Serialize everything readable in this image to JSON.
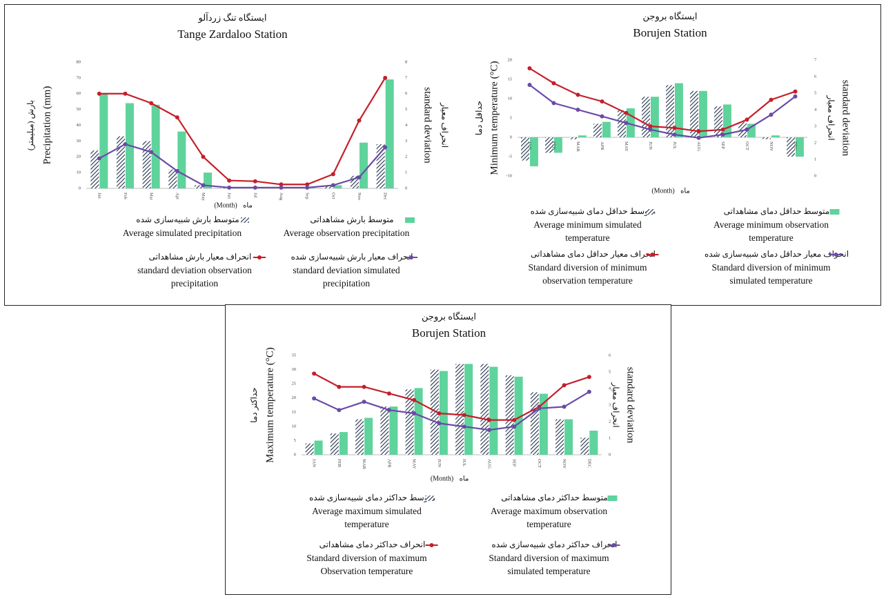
{
  "colors": {
    "observed_bar": "#5fd39c",
    "simulated_hatch": "#1f2f4a",
    "std_observed": "#c41f2a",
    "std_simulated": "#6a4aa6",
    "border": "#222222"
  },
  "chart_data": [
    {
      "type": "bar",
      "title_fa": "ایستگاه تنگ زردآلو",
      "title": "Tange Zardaloo Station",
      "ylabel": "Precipitation (mm)",
      "ylabel_fa": "بارش (میلیمتر)",
      "y2label": "standard deviation",
      "y2label_fa": "انحراف معیار",
      "xlabel": "(Month)",
      "xlabel_fa": "ماه",
      "categories": [
        "Jan",
        "Feb",
        "Mar",
        "Apr",
        "May",
        "Jun",
        "Jul",
        "Aug",
        "Sep",
        "Oct",
        "Nov",
        "Dec"
      ],
      "ylim": [
        0,
        80
      ],
      "yticks": [
        0,
        10,
        20,
        30,
        40,
        50,
        60,
        70,
        80
      ],
      "y2lim": [
        0,
        8
      ],
      "y2ticks": [
        0,
        1,
        2,
        3,
        4,
        5,
        6,
        7,
        8
      ],
      "series": [
        {
          "name": "Average simulated precipitation",
          "name_fa": "متوسط بارش شبیه‌سازی شده",
          "kind": "hatched-bar",
          "axis": "left",
          "values": [
            24,
            33,
            30,
            12,
            2,
            0.5,
            0.3,
            0.3,
            0.3,
            1.5,
            8,
            28
          ]
        },
        {
          "name": "Average observation precipitation",
          "name_fa": "متوسط بارش مشاهداتی",
          "kind": "bar",
          "axis": "left",
          "values": [
            60,
            54,
            53,
            36,
            10,
            0.5,
            0.3,
            0.3,
            0.3,
            2,
            29,
            69
          ]
        },
        {
          "name": "standard deviation observation precipitation",
          "name_fa": "انحراف معیار بارش مشاهداتی",
          "kind": "line",
          "axis": "right",
          "values": [
            6.0,
            6.0,
            5.4,
            4.5,
            2.0,
            0.5,
            0.45,
            0.25,
            0.25,
            0.9,
            4.3,
            7.0
          ]
        },
        {
          "name": "standard deviation simulated precipitation",
          "name_fa": "انحراف معیار بارش شبیه‌سازی شده",
          "kind": "line",
          "axis": "right",
          "values": [
            1.9,
            2.8,
            2.3,
            1.1,
            0.2,
            0.05,
            0.05,
            0.05,
            0.05,
            0.2,
            0.7,
            2.6
          ]
        }
      ],
      "legend": [
        {
          "fa": "متوسط بارش شبیه‌سازی شده",
          "en": [
            "Average simulated precipitation"
          ]
        },
        {
          "fa": "متوسط بارش مشاهداتی",
          "en": [
            "Average observation precipitation"
          ]
        },
        {
          "fa": "انحراف معیار بارش مشاهداتی",
          "en": [
            "standard deviation observation",
            "precipitation"
          ]
        },
        {
          "fa": "انحراف معیار بارش شبیه‌سازی شده",
          "en": [
            "standard deviation simulated",
            "precipitation"
          ]
        }
      ]
    },
    {
      "type": "bar",
      "title_fa": "ایستگاه بروجن",
      "title": "Borujen Station",
      "ylabel": "Minimum temperature (°C)",
      "ylabel_fa": "حداقل دما",
      "y2label": "standard deviation",
      "y2label_fa": "انحراف معیار",
      "xlabel": "(Month)",
      "xlabel_fa": "ماه",
      "categories": [
        "JAN",
        "FEB",
        "MAR",
        "APR",
        "MAY",
        "JUN",
        "JUL",
        "AUG",
        "SEP",
        "OCT",
        "NOV",
        "DEC"
      ],
      "ylim": [
        -10,
        20
      ],
      "yticks": [
        -10,
        -5,
        0,
        5,
        10,
        15,
        20
      ],
      "y2lim": [
        0,
        7
      ],
      "y2ticks": [
        0,
        1,
        2,
        3,
        4,
        5,
        6,
        7
      ],
      "series": [
        {
          "name": "Average minimum simulated temperature",
          "name_fa": "متوسط حداقل دمای شبیه‌سازی شده",
          "kind": "hatched-bar",
          "axis": "left",
          "values": [
            -6,
            -4,
            -0.5,
            3.5,
            7,
            10.5,
            13.5,
            12,
            8,
            4,
            -0.5,
            -5
          ]
        },
        {
          "name": "Average minimum observation temperature",
          "name_fa": "متوسط حداقل دمای مشاهداتی",
          "kind": "bar",
          "axis": "left",
          "values": [
            -7.5,
            -4,
            0.5,
            4,
            7.5,
            10.5,
            14,
            12,
            8.5,
            3.5,
            0.5,
            -5
          ]
        },
        {
          "name": "Standard diversion of minimum observation temperature",
          "name_fa": "انحراف معیار حداقل دمای مشاهداتی",
          "kind": "line",
          "axis": "right",
          "values": [
            6.5,
            5.6,
            4.9,
            4.5,
            3.8,
            3.0,
            2.9,
            2.7,
            2.8,
            3.4,
            4.6,
            5.1
          ]
        },
        {
          "name": "Standard diversion of minimum simulated temperature",
          "name_fa": "انحراف معیار حداقل دمای شبیه‌سازی شده",
          "kind": "line",
          "axis": "right",
          "values": [
            5.5,
            4.4,
            4.0,
            3.6,
            3.2,
            2.8,
            2.5,
            2.3,
            2.5,
            2.8,
            3.7,
            4.8
          ]
        }
      ],
      "legend": [
        {
          "fa": "متوسط حداقل دمای شبیه‌سازی شده",
          "en": [
            "Average minimum simulated",
            "temperature"
          ]
        },
        {
          "fa": "متوسط حداقل دمای مشاهداتی",
          "en": [
            "Average minimum observation",
            "temperature"
          ]
        },
        {
          "fa": "انحراف معیار حداقل دمای مشاهداتی",
          "en": [
            "Standard diversion of minimum",
            "observation temperature"
          ]
        },
        {
          "fa": "انحراف معیار حداقل دمای شبیه‌سازی شده",
          "en": [
            "Standard diversion of minimum",
            "simulated temperature"
          ]
        }
      ]
    },
    {
      "type": "bar",
      "title_fa": "ایستگاه بروجن",
      "title": "Borujen Station",
      "ylabel": "Maximum temperature (°C)",
      "ylabel_fa": "حداکثر دما",
      "y2label": "standard deviation",
      "y2label_fa": "انحراف معیار",
      "xlabel": "(Month)",
      "xlabel_fa": "ماه",
      "categories": [
        "JAN",
        "FEB",
        "MAR",
        "APR",
        "MAY",
        "JUN",
        "JUL",
        "AUG",
        "SEP",
        "OCT",
        "NOV",
        "DEC"
      ],
      "ylim": [
        0,
        35
      ],
      "yticks": [
        0,
        5,
        10,
        15,
        20,
        25,
        30,
        35
      ],
      "y2lim": [
        0,
        6
      ],
      "y2ticks": [
        0,
        1,
        2,
        3,
        4,
        5,
        6
      ],
      "series": [
        {
          "name": "Average maximum simulated temperature",
          "name_fa": "متوسط حداکثر دمای شبیه‌سازی شده",
          "kind": "hatched-bar",
          "axis": "left",
          "values": [
            4,
            7.5,
            12.5,
            17,
            23,
            30,
            32,
            32,
            28,
            22,
            12.5,
            6
          ]
        },
        {
          "name": "Average maximum observation temperature",
          "name_fa": "متوسط حداکثر دمای مشاهداتی",
          "kind": "bar",
          "axis": "left",
          "values": [
            5,
            8,
            13,
            17,
            23.5,
            29.5,
            32,
            31,
            27.5,
            21.5,
            12.5,
            8.5
          ]
        },
        {
          "name": "Standard diversion of maximum Observation temperature",
          "name_fa": "انحراف حداکثر دمای مشاهداتی",
          "kind": "line",
          "axis": "right",
          "values": [
            4.9,
            4.1,
            4.1,
            3.7,
            3.3,
            2.5,
            2.4,
            2.1,
            2.1,
            2.9,
            4.2,
            4.7
          ]
        },
        {
          "name": "Standard diversion of maximum simulated temperature",
          "name_fa": "انحراف حداکثر دمای شبیه‌سازی شده",
          "kind": "line",
          "axis": "right",
          "values": [
            3.4,
            2.7,
            3.2,
            2.7,
            2.5,
            1.9,
            1.7,
            1.5,
            1.7,
            2.8,
            2.9,
            3.8
          ]
        }
      ],
      "legend": [
        {
          "fa": "متوسط حداکثر دمای شبیه‌سازی شده",
          "en": [
            "Average maximum simulated",
            "temperature"
          ]
        },
        {
          "fa": "متوسط حداکثر دمای مشاهداتی",
          "en": [
            "Average maximum observation",
            "temperature"
          ]
        },
        {
          "fa": "انحراف حداکثر دمای مشاهداتی",
          "en": [
            "Standard diversion of maximum",
            "Observation temperature"
          ]
        },
        {
          "fa": "انحراف حداکثر دمای شبیه‌سازی شده",
          "en": [
            "Standard diversion of maximum",
            "simulated temperature"
          ]
        }
      ]
    }
  ]
}
